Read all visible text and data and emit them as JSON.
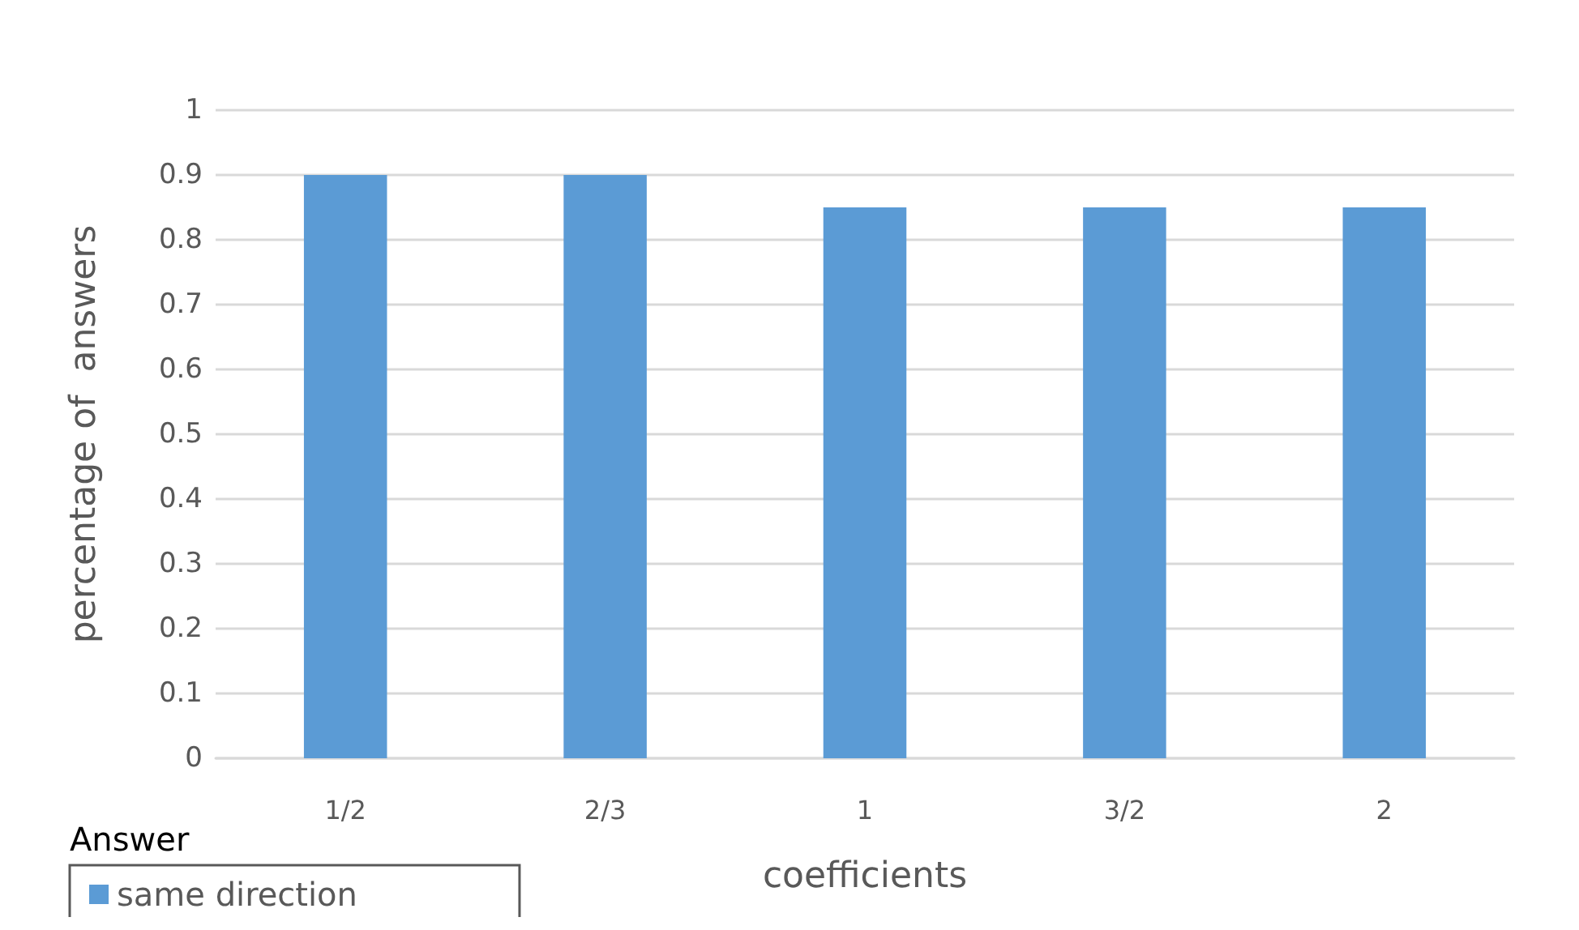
{
  "chart_data": {
    "type": "bar",
    "xlabel": "coefficients",
    "ylabel": "percentage of  answers",
    "categories": [
      "1/2",
      "2/3",
      "1",
      "3/2",
      "2"
    ],
    "series": [
      {
        "name": "same direction",
        "color": "#5b9bd5",
        "values": [
          0.9,
          0.9,
          0.85,
          0.85,
          0.85
        ]
      }
    ],
    "ylim": [
      0,
      1
    ],
    "yticks": [
      0,
      0.1,
      0.2,
      0.3,
      0.4,
      0.5,
      0.6,
      0.7,
      0.8,
      0.9,
      1
    ],
    "grid": "y",
    "legend": "bottom left",
    "annotations": [
      "Answer"
    ]
  }
}
